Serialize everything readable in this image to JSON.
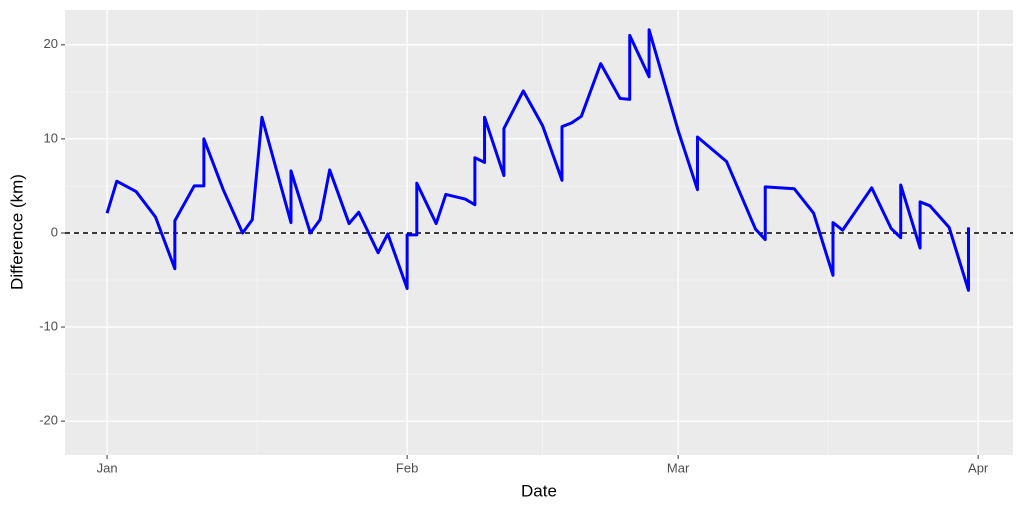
{
  "chart_data": {
    "type": "line",
    "x_label": "Date",
    "y_label": "Difference (km)",
    "x": [
      0,
      1,
      3,
      5,
      7,
      7,
      9,
      10,
      10,
      12,
      14,
      15,
      16,
      19,
      19,
      21,
      22,
      23,
      25,
      26,
      28,
      29,
      31,
      31,
      32,
      32,
      34,
      35,
      37,
      38,
      38,
      39,
      39,
      41,
      41,
      43,
      45,
      47,
      47,
      48,
      49,
      51,
      53,
      54,
      54,
      56,
      56,
      59,
      61,
      61,
      64,
      67,
      68,
      68,
      71,
      73,
      75,
      75,
      76,
      79,
      81,
      82,
      82,
      84,
      84,
      85,
      87,
      89,
      89
    ],
    "series": [
      {
        "name": "Difference",
        "color": "#0000ff",
        "values": [
          2.1,
          5.5,
          4.4,
          1.7,
          -3.8,
          1.3,
          5.0,
          5.0,
          10.0,
          4.6,
          0.0,
          1.4,
          12.3,
          1.1,
          6.6,
          0.0,
          1.4,
          6.7,
          1.0,
          2.2,
          -2.1,
          -0.1,
          -5.9,
          -0.2,
          -0.2,
          5.3,
          1.0,
          4.1,
          3.6,
          3.0,
          8.0,
          7.5,
          12.3,
          6.1,
          11.1,
          15.1,
          11.4,
          5.6,
          11.3,
          11.7,
          12.4,
          18.0,
          14.3,
          14.2,
          21.0,
          16.6,
          21.6,
          10.9,
          4.6,
          10.2,
          7.6,
          0.4,
          -0.7,
          4.9,
          4.7,
          2.1,
          -4.5,
          1.1,
          0.3,
          4.8,
          0.5,
          -0.5,
          5.1,
          -1.6,
          3.3,
          2.9,
          0.6,
          -6.1,
          0.6
        ]
      }
    ],
    "hline": 0,
    "xlim": [
      -4.35,
      93.6
    ],
    "xticks": [
      {
        "value": 0,
        "label": "Jan"
      },
      {
        "value": 31,
        "label": "Feb"
      },
      {
        "value": 59,
        "label": "Mar"
      },
      {
        "value": 90,
        "label": "Apr"
      }
    ],
    "ylim": [
      -23.6,
      23.7
    ],
    "yticks": [
      -20,
      -10,
      0,
      10,
      20
    ],
    "grid": true
  }
}
